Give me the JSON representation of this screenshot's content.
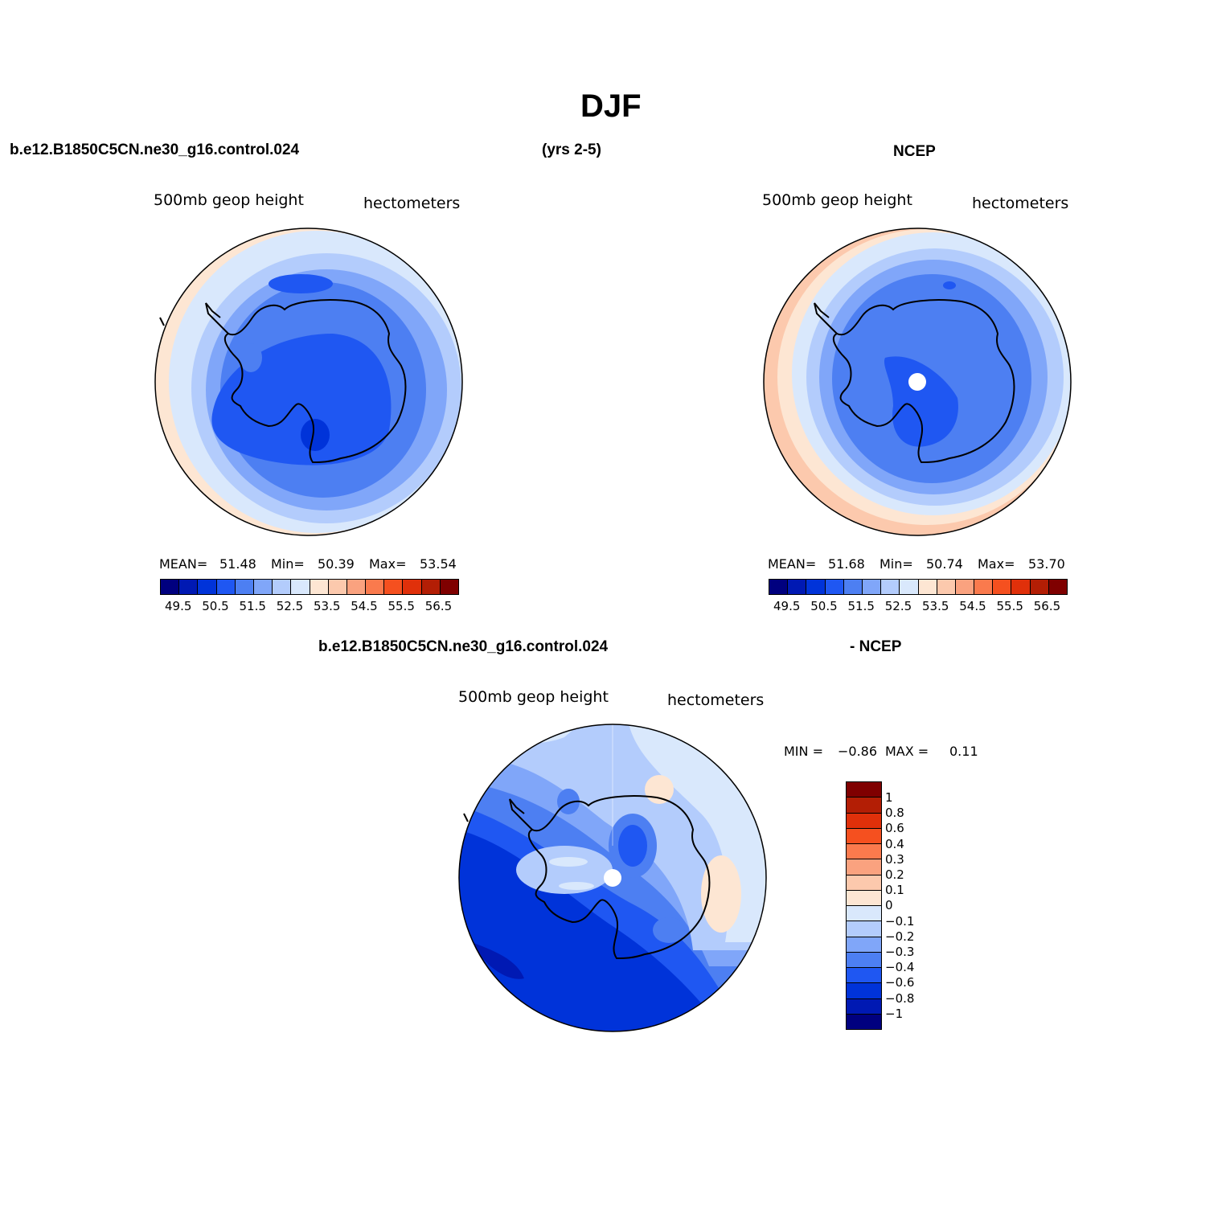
{
  "figure": {
    "title": "DJF",
    "top_left": {
      "case": "b.e12.B1850C5CN.ne30_g16.control.024",
      "period": "(yrs 2-5)",
      "reference": "NCEP"
    },
    "bottom": {
      "case": "b.e12.B1850C5CN.ne30_g16.control.024",
      "diff_label": "- NCEP"
    }
  },
  "panels": [
    {
      "id": "model",
      "variable": "500mb geop height",
      "units": "hectometers",
      "stats": {
        "mean_label": "MEAN=",
        "mean": "51.48",
        "min_label": "Min=",
        "min": "50.39",
        "max_label": "Max=",
        "max": "53.54"
      }
    },
    {
      "id": "ncep",
      "variable": "500mb geop height",
      "units": "hectometers",
      "stats": {
        "mean_label": "MEAN=",
        "mean": "51.68",
        "min_label": "Min=",
        "min": "50.74",
        "max_label": "Max=",
        "max": "53.70"
      }
    },
    {
      "id": "diff",
      "variable": "500mb geop height",
      "units": "hectometers",
      "stats": {
        "min_label": "MIN =",
        "min": "−0.86",
        "max_label": "MAX =",
        "max": "0.11"
      }
    }
  ],
  "colorbar_abs": {
    "colors": [
      "#00007f",
      "#0019b3",
      "#0033d9",
      "#1f57f2",
      "#4d7ff2",
      "#80a6f9",
      "#b3ccfc",
      "#d9e8fc",
      "#fde6d3",
      "#fcc9ad",
      "#faa27f",
      "#fa7a4d",
      "#f5501f",
      "#e0300a",
      "#b31e05",
      "#7f0000"
    ],
    "labels": [
      "49.5",
      "50.5",
      "51.5",
      "52.5",
      "53.5",
      "54.5",
      "55.5",
      "56.5"
    ]
  },
  "colorbar_diff": {
    "colors": [
      "#7f0000",
      "#b31e05",
      "#e0300a",
      "#f5501f",
      "#fa7a4d",
      "#faa27f",
      "#fcc9ad",
      "#fde6d3",
      "#d9e8fc",
      "#b3ccfc",
      "#80a6f9",
      "#4d7ff2",
      "#1f57f2",
      "#0033d9",
      "#0019b3",
      "#00007f"
    ],
    "labels": [
      "1",
      "0.8",
      "0.6",
      "0.4",
      "0.3",
      "0.2",
      "0.1",
      "0",
      "−0.1",
      "−0.2",
      "−0.3",
      "−0.4",
      "−0.6",
      "−0.8",
      "−1"
    ]
  }
}
